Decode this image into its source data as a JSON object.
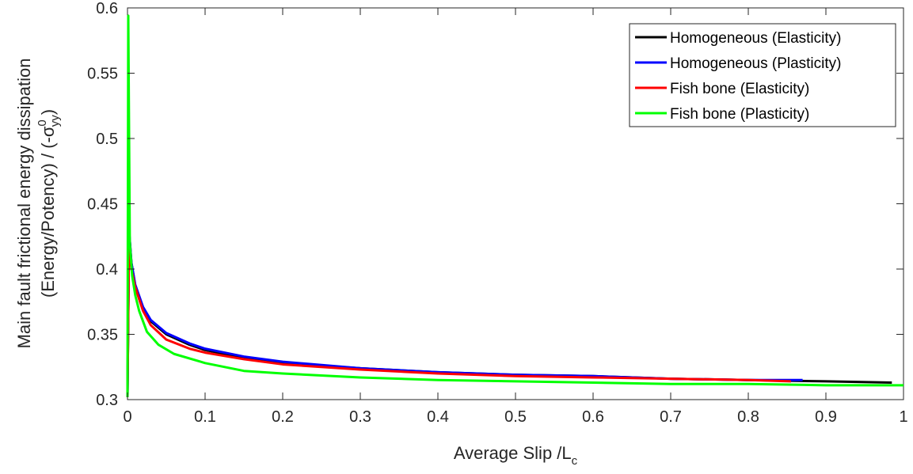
{
  "chart_data": {
    "type": "line",
    "xlabel": "Average Slip /L",
    "xlabel_sub": "c",
    "ylabel_line1": "Main fault frictional energy dissipation",
    "ylabel_line2_prefix": "(Energy/Potency) / (-σ",
    "ylabel_sup": "0",
    "ylabel_sub": "yy",
    "ylabel_line2_suffix": ")",
    "xlim": [
      0,
      1
    ],
    "ylim": [
      0.3,
      0.6
    ],
    "xticks": [
      0,
      0.1,
      0.2,
      0.3,
      0.4,
      0.5,
      0.6,
      0.7,
      0.8,
      0.9,
      1
    ],
    "xtick_labels": [
      "0",
      "0.1",
      "0.2",
      "0.3",
      "0.4",
      "0.5",
      "0.6",
      "0.7",
      "0.8",
      "0.9",
      "1"
    ],
    "yticks": [
      0.3,
      0.35,
      0.4,
      0.45,
      0.5,
      0.55,
      0.6
    ],
    "ytick_labels": [
      "0.3",
      "0.35",
      "0.4",
      "0.45",
      "0.5",
      "0.55",
      "0.6"
    ],
    "grid": false,
    "legend_position": "top-right",
    "series": [
      {
        "name": "Homogeneous (Elasticity)",
        "color": "#000000",
        "x": [
          0,
          0.002,
          0.005,
          0.01,
          0.02,
          0.03,
          0.05,
          0.08,
          0.1,
          0.15,
          0.2,
          0.3,
          0.4,
          0.5,
          0.6,
          0.7,
          0.8,
          0.9,
          0.985
        ],
        "y": [
          0.302,
          0.43,
          0.405,
          0.387,
          0.37,
          0.36,
          0.35,
          0.342,
          0.338,
          0.332,
          0.328,
          0.324,
          0.321,
          0.319,
          0.318,
          0.316,
          0.315,
          0.314,
          0.313
        ]
      },
      {
        "name": "Homogeneous (Plasticity)",
        "color": "#0000ff",
        "x": [
          0,
          0.002,
          0.005,
          0.01,
          0.02,
          0.03,
          0.05,
          0.08,
          0.1,
          0.15,
          0.2,
          0.3,
          0.4,
          0.5,
          0.6,
          0.7,
          0.8,
          0.87
        ],
        "y": [
          0.302,
          0.43,
          0.405,
          0.388,
          0.371,
          0.361,
          0.351,
          0.343,
          0.339,
          0.333,
          0.329,
          0.324,
          0.321,
          0.319,
          0.318,
          0.316,
          0.315,
          0.315
        ]
      },
      {
        "name": "Fish bone (Elasticity)",
        "color": "#ff0000",
        "x": [
          0,
          0.002,
          0.005,
          0.01,
          0.02,
          0.03,
          0.05,
          0.08,
          0.1,
          0.15,
          0.2,
          0.3,
          0.4,
          0.5,
          0.6,
          0.7,
          0.8,
          0.855
        ],
        "y": [
          0.302,
          0.425,
          0.4,
          0.386,
          0.368,
          0.357,
          0.346,
          0.339,
          0.336,
          0.331,
          0.327,
          0.323,
          0.32,
          0.318,
          0.317,
          0.316,
          0.315,
          0.314
        ]
      },
      {
        "name": "Fish bone (Plasticity)",
        "color": "#00ff00",
        "x": [
          0,
          0.001,
          0.003,
          0.006,
          0.01,
          0.015,
          0.025,
          0.04,
          0.06,
          0.1,
          0.15,
          0.2,
          0.3,
          0.4,
          0.5,
          0.6,
          0.7,
          0.8,
          0.9,
          1.0
        ],
        "y": [
          0.302,
          0.594,
          0.42,
          0.395,
          0.38,
          0.368,
          0.352,
          0.342,
          0.335,
          0.328,
          0.322,
          0.32,
          0.317,
          0.315,
          0.314,
          0.313,
          0.312,
          0.312,
          0.311,
          0.311
        ]
      }
    ]
  }
}
